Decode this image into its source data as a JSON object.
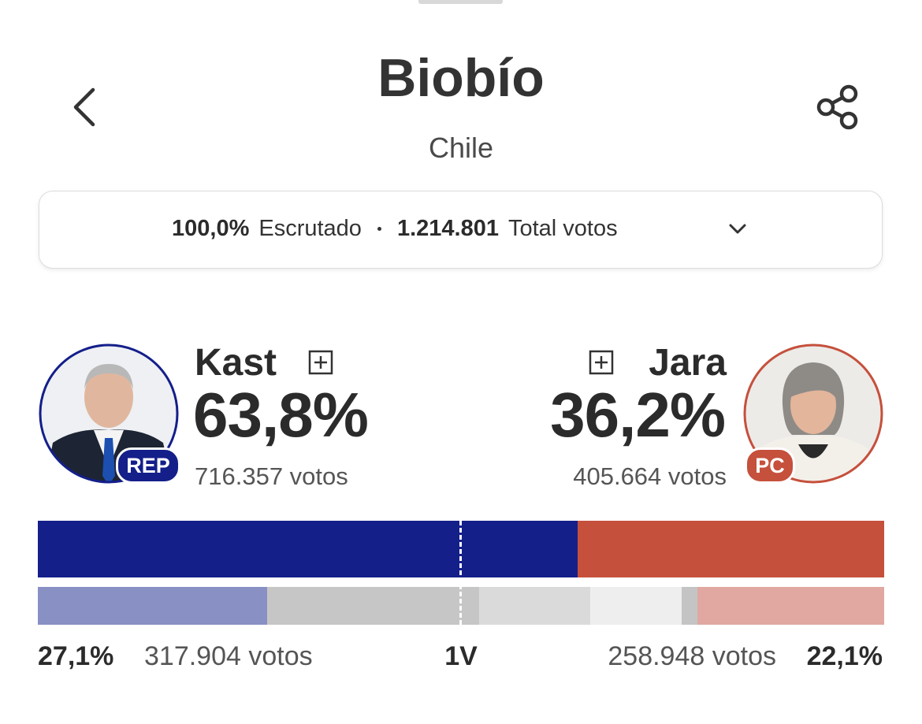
{
  "header": {
    "title": "Biobío",
    "subtitle": "Chile"
  },
  "summary": {
    "counted": "100,0%",
    "counted_label": "Escrutado",
    "total": "1.214.801",
    "total_label": "Total votos"
  },
  "candidates": [
    {
      "name": "Kast",
      "party": "REP",
      "share": {
        "value": 63.8,
        "label": "63,8%"
      },
      "votes": "716.357 votos",
      "color": "#141f8a"
    },
    {
      "name": "Jara",
      "party": "PC",
      "share": {
        "value": 36.2,
        "label": "36,2%"
      },
      "votes": "405.664 votos",
      "color": "#c5503c"
    }
  ],
  "first_round": {
    "label": "1V",
    "segments": [
      {
        "value": 27.1,
        "label": "27,1%",
        "votes": "317.904 votos",
        "color": "#8890c4"
      },
      {
        "value": 25.0,
        "color": "#c6c6c6"
      },
      {
        "value": 13.2,
        "color": "#dadada"
      },
      {
        "value": 10.8,
        "color": "#eeeeee"
      },
      {
        "value": 1.8,
        "color": "#c4c4c4"
      },
      {
        "value": 22.1,
        "label": "22,1%",
        "votes": "258.948 votos",
        "color": "#e0a8a0"
      }
    ]
  }
}
